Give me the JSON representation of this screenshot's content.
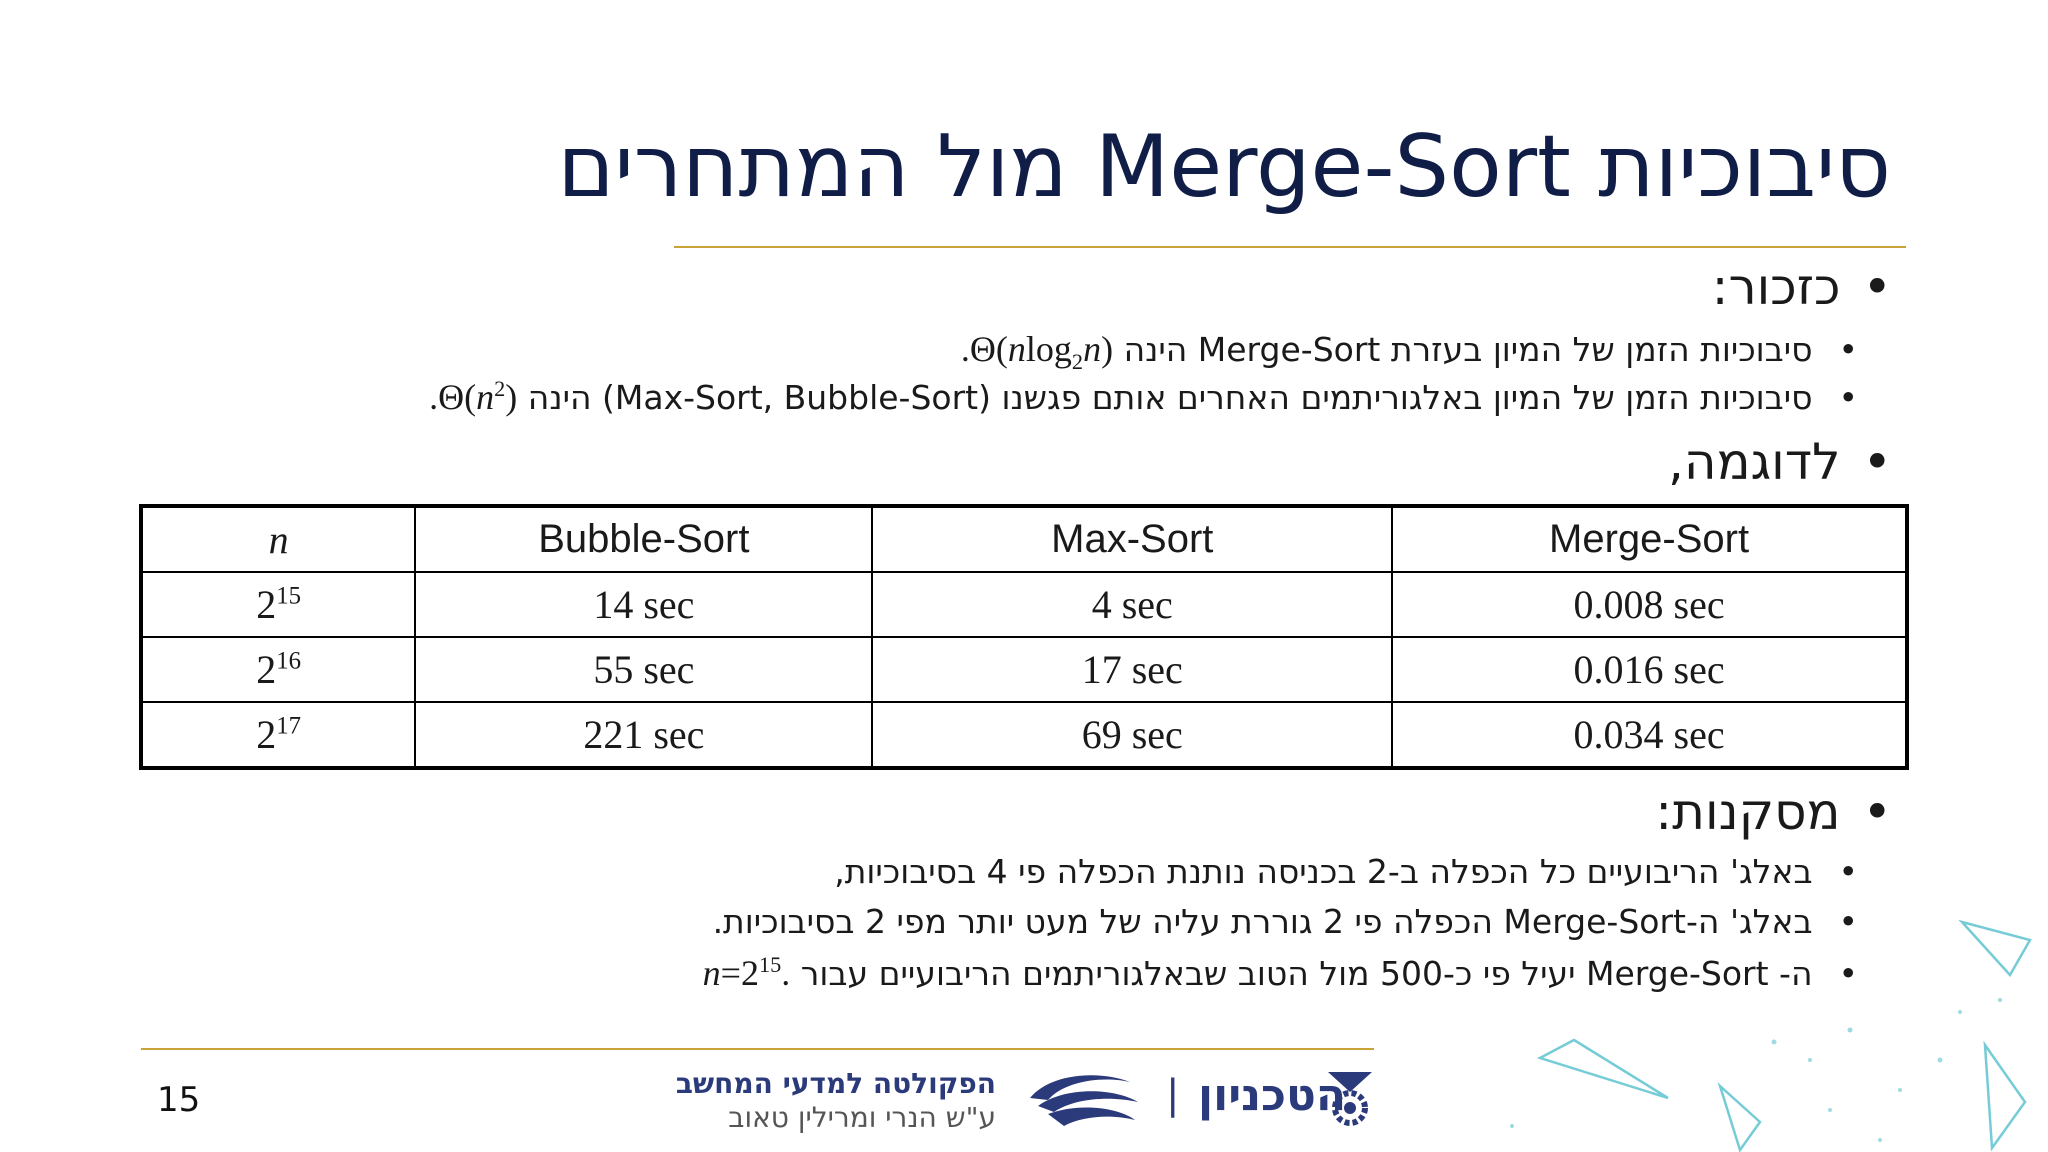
{
  "title": "סיבוכיות Merge-Sort מול המתחרים",
  "recall": {
    "label": "כזכור:",
    "items": [
      {
        "text": "סיבוכיות הזמן של המיון בעזרת Merge-Sort הינה",
        "formula_prefix": ".Θ(",
        "formula_n": "n",
        "formula_log": "log",
        "formula_sub": "2",
        "formula_n2": "n",
        "formula_suffix": ")"
      },
      {
        "text": "סיבוכיות הזמן של המיון באלגוריתמים האחרים אותם פגשנו (Max-Sort, Bubble-Sort) הינה",
        "formula_prefix": ".Θ(",
        "formula_n": "n",
        "formula_sup": "2",
        "formula_suffix": ")"
      }
    ]
  },
  "example": {
    "label": "לדוגמה,"
  },
  "table": {
    "headers": [
      "n",
      "Bubble-Sort",
      "Max-Sort",
      "Merge-Sort"
    ],
    "rows": [
      {
        "base": "2",
        "exp": "15",
        "bubble": "14 sec",
        "max": "4 sec",
        "merge": "0.008 sec"
      },
      {
        "base": "2",
        "exp": "16",
        "bubble": "55 sec",
        "max": "17 sec",
        "merge": "0.016 sec"
      },
      {
        "base": "2",
        "exp": "17",
        "bubble": "221 sec",
        "max": "69 sec",
        "merge": "0.034 sec"
      }
    ]
  },
  "conclusions": {
    "label": "מסקנות:",
    "items": [
      "באלג' הריבועיים כל הכפלה ב-2 בכניסה נותנת הכפלה פי 4 בסיבוכיות,",
      "באלג' ה-Merge-Sort הכפלה פי 2 גוררת עליה של מעט יותר מפי 2 בסיבוכיות.",
      {
        "text": "ה- Merge-Sort יעיל פי כ-500 מול הטוב שבאלגוריתמים הריבועיים עבור",
        "formula_n": "n",
        "formula_eq": "=2",
        "formula_sup": "15",
        "formula_end": "."
      }
    ]
  },
  "footer": {
    "page_number": "15",
    "faculty_line1": "הפקולטה למדעי המחשב",
    "faculty_line2": "ע\"ש הנרי ומרילין טאוב",
    "technion": "הטכניון",
    "separator": "|"
  },
  "colors": {
    "title": "#0f1d47",
    "accent_gold": "#c7a33a",
    "footer_navy": "#2b3a7a",
    "deco_teal": "#5ec3cf"
  },
  "icons": [
    "technion-logo-icon",
    "cs-faculty-logo-icon",
    "triangle-decoration-icon"
  ]
}
